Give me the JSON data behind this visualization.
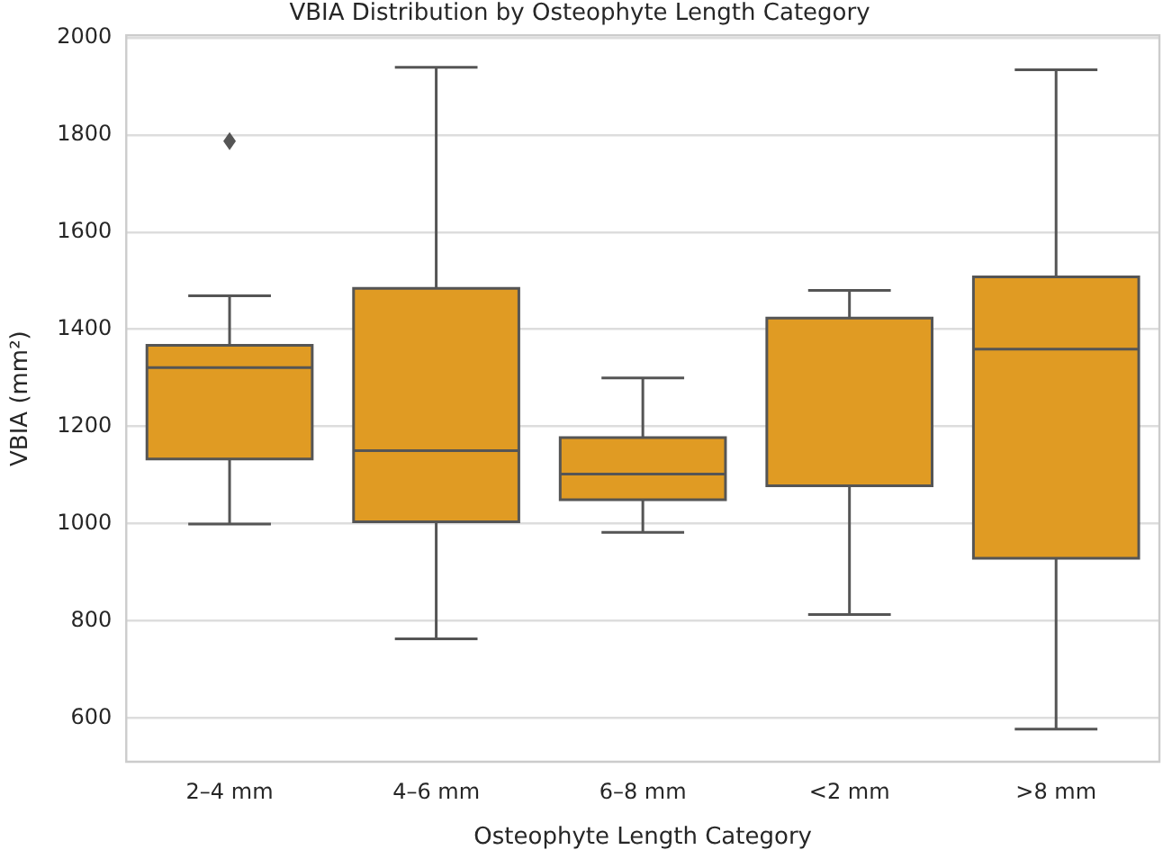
{
  "chart_data": {
    "type": "box",
    "title": "VBIA Distribution by Osteophyte Length Category",
    "xlabel": "Osteophyte Length Category",
    "ylabel": "VBIA (mm²)",
    "categories": [
      "2–4 mm",
      "4–6 mm",
      "6–8 mm",
      "<2 mm",
      ">8 mm"
    ],
    "color": "#e09b23",
    "boxes": [
      {
        "low": 999,
        "q1": 1133,
        "median": 1321,
        "q3": 1367,
        "high": 1469,
        "outliers": [
          1787
        ]
      },
      {
        "low": 763,
        "q1": 1004,
        "median": 1150,
        "q3": 1484,
        "high": 1939
      },
      {
        "low": 982,
        "q1": 1049,
        "median": 1102,
        "q3": 1177,
        "high": 1300
      },
      {
        "low": 813,
        "q1": 1078,
        "median": 1078,
        "q3": 1423,
        "high": 1480
      },
      {
        "low": 577,
        "q1": 929,
        "median": 1359,
        "q3": 1508,
        "high": 1934
      }
    ],
    "ylim": [
      510,
      2005
    ],
    "yticks": [
      600,
      800,
      1000,
      1200,
      1400,
      1600,
      1800,
      2000
    ],
    "grid": "y",
    "marker": "diamond"
  }
}
